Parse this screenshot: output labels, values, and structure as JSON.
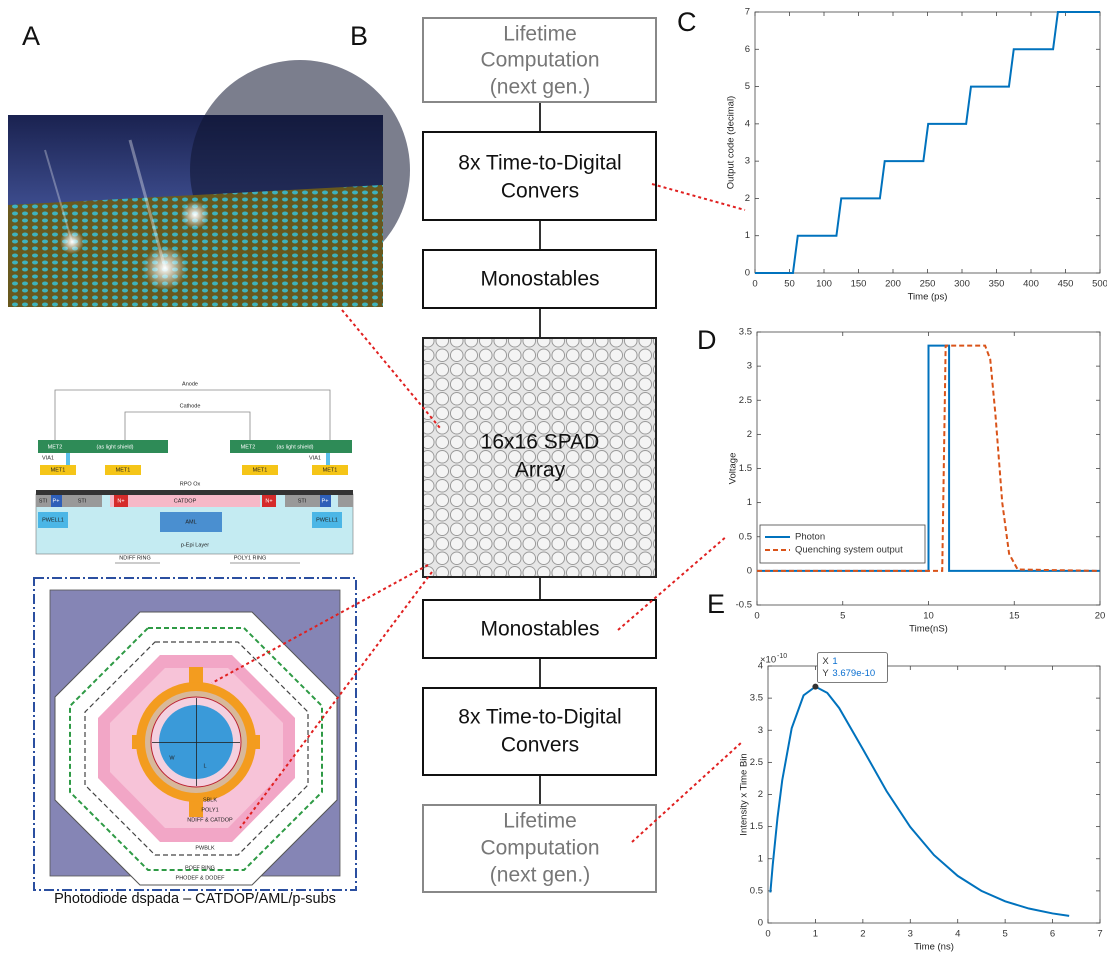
{
  "panel_labels": [
    "A",
    "B",
    "C",
    "D",
    "E"
  ],
  "pipeline": {
    "boxes": [
      {
        "lines": [
          "Lifetime",
          "Computation",
          "(next gen.)"
        ]
      },
      {
        "lines": [
          "8x Time-to-Digital",
          "Convers"
        ]
      },
      {
        "lines": [
          "Monostables"
        ]
      },
      {
        "lines": [
          "16x16 SPAD",
          "Array"
        ]
      },
      {
        "lines": [
          "Monostables"
        ]
      },
      {
        "lines": [
          "8x Time-to-Digital",
          "Convers"
        ]
      },
      {
        "lines": [
          "Lifetime",
          "Computation",
          "(next gen.)"
        ]
      }
    ]
  },
  "cross_section": {
    "labels": [
      "Anode",
      "Cathode",
      "MET2",
      "(as light shield)",
      "VIA1",
      "MET1",
      "RPO Ox",
      "CATDOP",
      "STI",
      "P+",
      "N+",
      "AML",
      "PWELL1",
      "p-Epi Layer",
      "NDIFF RING",
      "POLY1 RING",
      "SBLK",
      "POLY1",
      "NDIFF & CATDOP",
      "PWBLK",
      "POFF RING",
      "PHODEF & DODEF",
      "W",
      "L"
    ],
    "caption": "Photodiode dspada – CATDOP/AML/p-subs"
  },
  "chart_data": [
    {
      "type": "line",
      "x": [
        0,
        55,
        62,
        118,
        125,
        181,
        188,
        244,
        251,
        306,
        313,
        368,
        375,
        432,
        439,
        500
      ],
      "values": [
        0,
        0,
        1,
        1,
        2,
        2,
        3,
        3,
        4,
        4,
        5,
        5,
        6,
        6,
        7,
        7
      ],
      "color": "#0072bd",
      "x_label": "Time (ps)",
      "y_label": "Output code (decimal)",
      "xlim": [
        0,
        500
      ],
      "ylim": [
        0,
        7
      ],
      "xticks": [
        0,
        50,
        100,
        150,
        200,
        250,
        300,
        350,
        400,
        450,
        500
      ],
      "yticks": [
        0,
        1,
        2,
        3,
        4,
        5,
        6,
        7
      ],
      "grid": false
    },
    {
      "type": "line",
      "series": [
        {
          "name": "Photon",
          "color": "#0072bd",
          "line_style": "solid",
          "x": [
            0,
            10,
            10,
            11.2,
            11.2,
            20
          ],
          "values": [
            0,
            0,
            3.3,
            3.3,
            0,
            0
          ]
        },
        {
          "name": "Quenching system output",
          "color": "#d95319",
          "line_style": "dashed",
          "x": [
            0,
            10.8,
            11,
            13.3,
            13.6,
            13.9,
            14.3,
            14.7,
            15.2,
            20
          ],
          "values": [
            0,
            0,
            3.3,
            3.3,
            3.1,
            2.3,
            1.0,
            0.25,
            0.02,
            0
          ]
        }
      ],
      "x_label": "Time(nS)",
      "y_label": "Voltage",
      "xlim": [
        0,
        20
      ],
      "ylim": [
        -0.5,
        3.5
      ],
      "xticks": [
        0,
        5,
        10,
        15,
        20
      ],
      "yticks": [
        -0.5,
        0,
        0.5,
        1,
        1.5,
        2,
        2.5,
        3,
        3.5
      ],
      "legend": "lower left",
      "grid": false
    },
    {
      "type": "line",
      "x": [
        0.05,
        0.1,
        0.2,
        0.3,
        0.5,
        0.75,
        1,
        1.25,
        1.5,
        2,
        2.5,
        3,
        3.5,
        4,
        4.5,
        5,
        5.5,
        6,
        6.35
      ],
      "values": [
        0.476,
        0.905,
        1.637,
        2.222,
        3.033,
        3.543,
        3.679,
        3.581,
        3.347,
        2.707,
        2.052,
        1.494,
        1.057,
        0.733,
        0.5,
        0.337,
        0.225,
        0.149,
        0.111
      ],
      "color": "#0072bd",
      "x_label": "Time (ns)",
      "y_label": "Intensity x Time Bin",
      "y_scale": {
        "base": "×10",
        "exponent": "-10"
      },
      "xlim": [
        0,
        7
      ],
      "ylim": [
        0,
        4
      ],
      "xticks": [
        0,
        1,
        2,
        3,
        4,
        5,
        6,
        7
      ],
      "yticks": [
        0,
        0.5,
        1,
        1.5,
        2,
        2.5,
        3,
        3.5,
        4
      ],
      "datatip": {
        "x": 1,
        "y": 3.679,
        "x_name": "X",
        "y_name": "Y",
        "y_label": "3.679e-10"
      },
      "grid": false
    }
  ]
}
